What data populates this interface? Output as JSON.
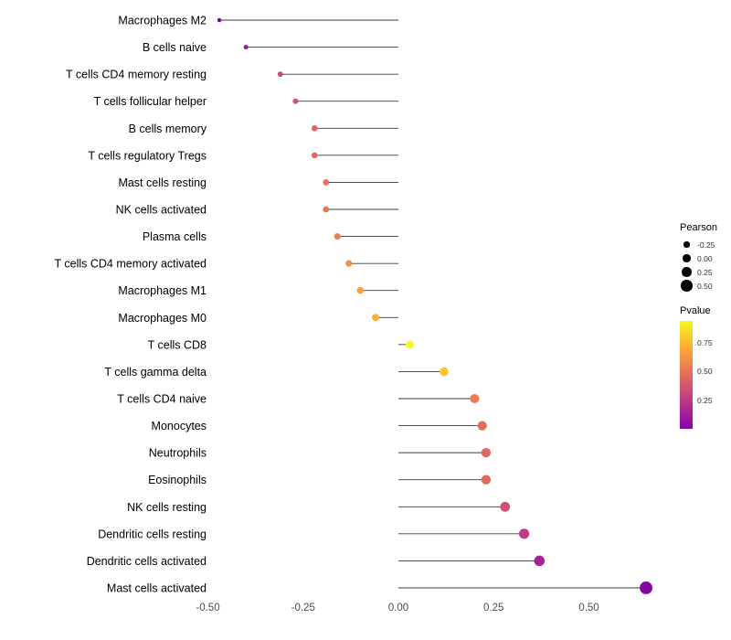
{
  "chart_data": {
    "type": "scatter",
    "variant": "lollipop",
    "title": "",
    "xlabel": "",
    "ylabel": "",
    "x_tick_labels": [
      "-0.50",
      "-0.25",
      "0.00",
      "0.25",
      "0.50"
    ],
    "x_ticks": [
      -0.5,
      -0.25,
      0.0,
      0.25,
      0.5
    ],
    "xlim": [
      -0.55,
      0.78
    ],
    "grid": false,
    "legend_position": "right",
    "points": [
      {
        "label": "Macrophages M2",
        "pearson": -0.47,
        "color": "#7e03a8"
      },
      {
        "label": "B cells naive",
        "pearson": -0.4,
        "color": "#9c179e"
      },
      {
        "label": "T cells CD4 memory resting",
        "pearson": -0.31,
        "color": "#ca457a"
      },
      {
        "label": "T cells follicular helper",
        "pearson": -0.27,
        "color": "#d5536f"
      },
      {
        "label": "B cells memory",
        "pearson": -0.22,
        "color": "#e06363"
      },
      {
        "label": "T cells regulatory  Tregs",
        "pearson": -0.22,
        "color": "#e26561"
      },
      {
        "label": "Mast cells resting",
        "pearson": -0.19,
        "color": "#e97158"
      },
      {
        "label": "NK cells activated",
        "pearson": -0.19,
        "color": "#ea7457"
      },
      {
        "label": "Plasma cells",
        "pearson": -0.16,
        "color": "#f0804e"
      },
      {
        "label": "T cells CD4 memory activated",
        "pearson": -0.13,
        "color": "#f79044"
      },
      {
        "label": "Macrophages M1",
        "pearson": -0.1,
        "color": "#fba238"
      },
      {
        "label": "Macrophages M0",
        "pearson": -0.06,
        "color": "#fdb030"
      },
      {
        "label": "T cells CD8",
        "pearson": 0.03,
        "color": "#f8f821"
      },
      {
        "label": "T cells gamma delta",
        "pearson": 0.12,
        "color": "#fcc627"
      },
      {
        "label": "T cells CD4 naive",
        "pearson": 0.2,
        "color": "#ee7b51"
      },
      {
        "label": "Monocytes",
        "pearson": 0.22,
        "color": "#e76d5b"
      },
      {
        "label": "Neutrophils",
        "pearson": 0.23,
        "color": "#e36860"
      },
      {
        "label": "Eosinophils",
        "pearson": 0.23,
        "color": "#e36860"
      },
      {
        "label": "NK cells resting",
        "pearson": 0.28,
        "color": "#d24f71"
      },
      {
        "label": "Dendritic cells resting",
        "pearson": 0.33,
        "color": "#c13b82"
      },
      {
        "label": "Dendritic cells activated",
        "pearson": 0.37,
        "color": "#a72197"
      },
      {
        "label": "Mast cells activated",
        "pearson": 0.65,
        "color": "#8305a7"
      }
    ]
  },
  "legends": {
    "pearson": {
      "title": "Pearson",
      "items": [
        {
          "label": "-0.25",
          "value": -0.25
        },
        {
          "label": "0.00",
          "value": 0.0
        },
        {
          "label": "0.25",
          "value": 0.25
        },
        {
          "label": "0.50",
          "value": 0.5
        }
      ]
    },
    "pvalue": {
      "title": "Pvalue",
      "gradient": [
        "#f0f921",
        "#fdc328",
        "#f89441",
        "#e56b5d",
        "#cc4778",
        "#aa2395",
        "#8305a7"
      ],
      "ticks": [
        {
          "label": "0.75",
          "pos": 0.2
        },
        {
          "label": "0.50",
          "pos": 0.47
        },
        {
          "label": "0.25",
          "pos": 0.74
        }
      ]
    }
  }
}
